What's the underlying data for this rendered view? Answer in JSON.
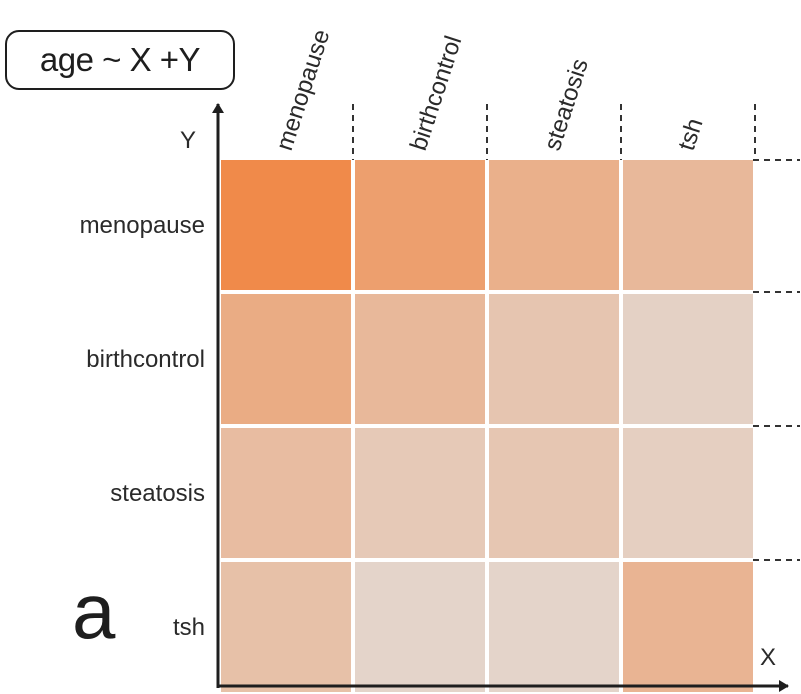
{
  "formula": "age ~ X +Y",
  "panel_letter": "a",
  "chart_data": {
    "type": "heatmap",
    "title": "",
    "xlabel": "X",
    "ylabel": "Y",
    "x_categories": [
      "menopause",
      "birthcontrol",
      "steatosis",
      "tsh"
    ],
    "y_categories": [
      "menopause",
      "birthcontrol",
      "steatosis",
      "tsh"
    ],
    "values": [
      [
        1.0,
        0.75,
        0.55,
        0.45
      ],
      [
        0.6,
        0.45,
        0.3,
        0.15
      ],
      [
        0.4,
        0.25,
        0.28,
        0.18
      ],
      [
        0.35,
        0.12,
        0.12,
        0.5
      ]
    ],
    "colorscale": {
      "low": "#e2dedb",
      "high": "#f08a4a"
    },
    "grid": true
  }
}
